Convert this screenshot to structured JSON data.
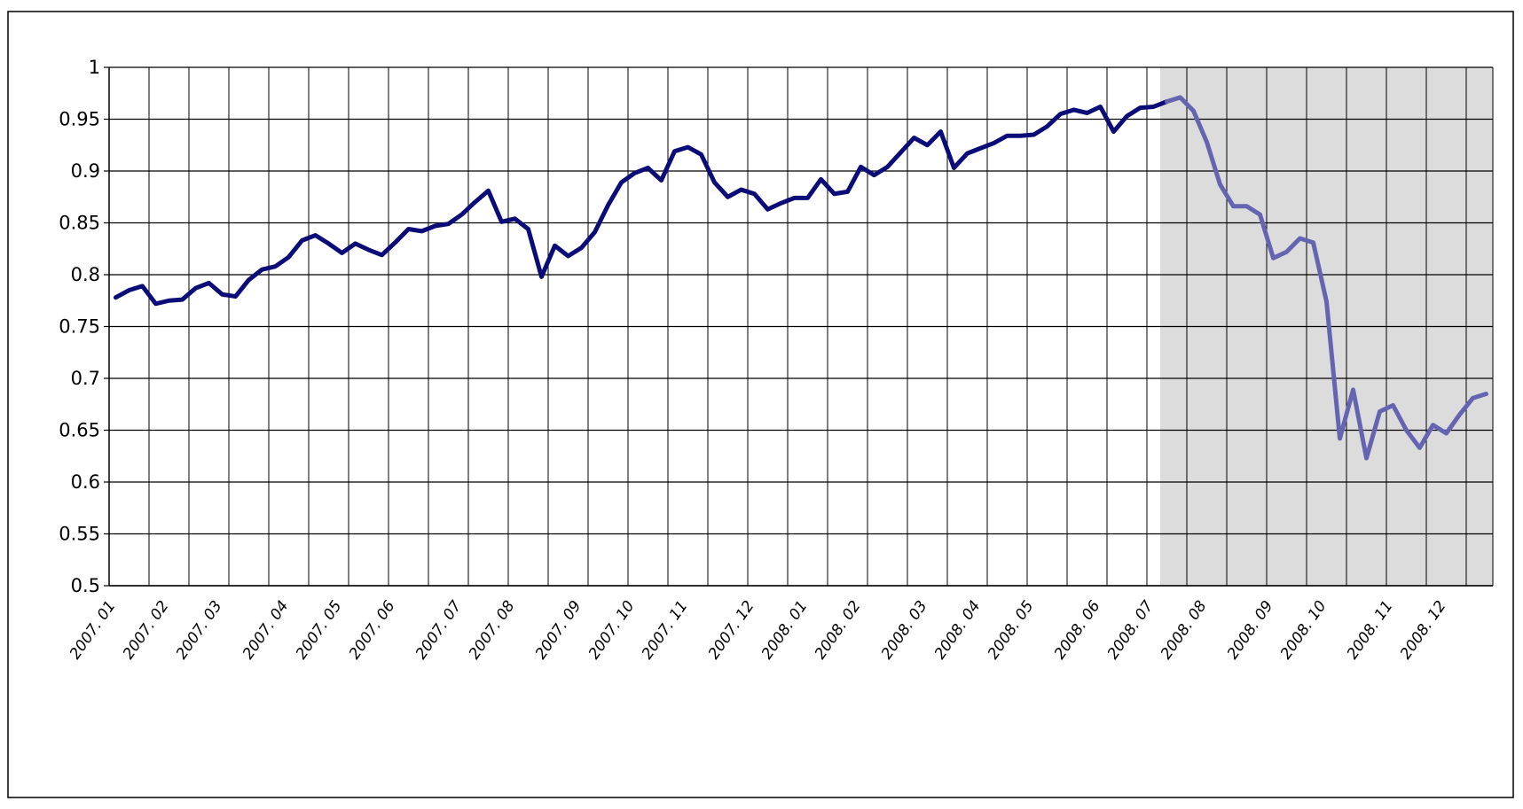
{
  "chart_data": {
    "type": "line",
    "categories": [
      "2007. 01",
      null,
      null,
      null,
      "2007. 02",
      null,
      null,
      null,
      "2007. 03",
      null,
      null,
      null,
      null,
      "2007. 04",
      null,
      null,
      null,
      "2007. 05",
      null,
      null,
      null,
      "2007. 06",
      null,
      null,
      null,
      null,
      "2007. 07",
      null,
      null,
      null,
      "2007. 08",
      null,
      null,
      null,
      null,
      "2007. 09",
      null,
      null,
      null,
      "2007. 10",
      null,
      null,
      null,
      "2007. 11",
      null,
      null,
      null,
      null,
      "2007. 12",
      null,
      null,
      null,
      "2008. 01",
      null,
      null,
      null,
      "2008. 02",
      null,
      null,
      null,
      null,
      "2008. 03",
      null,
      null,
      null,
      "2008. 04",
      null,
      null,
      null,
      "2008. 05",
      null,
      null,
      null,
      null,
      "2008. 06",
      null,
      null,
      null,
      "2008. 07",
      null,
      null,
      null,
      "2008. 08",
      null,
      null,
      null,
      null,
      "2008. 09",
      null,
      null,
      null,
      "2008. 10",
      null,
      null,
      null,
      null,
      "2008. 11",
      null,
      null,
      null,
      "2008. 12",
      null,
      null,
      null
    ],
    "series": [
      {
        "color": "#0c0c78",
        "values": [
          0.778,
          0.785,
          0.789,
          0.772,
          0.775,
          0.776,
          0.787,
          0.792,
          0.781,
          0.779,
          0.795,
          0.805,
          0.808,
          0.817,
          0.833,
          0.838,
          0.83,
          0.821,
          0.83,
          0.824,
          0.819,
          0.831,
          0.844,
          0.842,
          0.847,
          0.849,
          0.858,
          0.87,
          0.881,
          0.851,
          0.854,
          0.844,
          0.798,
          0.828,
          0.818,
          0.826,
          0.841,
          0.867,
          0.889,
          0.898,
          0.903,
          0.891,
          0.919,
          0.923,
          0.916,
          0.889,
          0.875,
          0.882,
          0.878,
          0.863,
          0.869,
          0.874,
          0.874,
          0.892,
          0.878,
          0.88,
          0.904,
          0.896,
          0.904,
          0.918,
          0.932,
          0.925,
          0.938,
          0.903,
          0.917,
          0.922,
          0.927,
          0.934,
          0.934,
          0.935,
          0.943,
          0.955,
          0.959,
          0.956,
          0.962,
          0.938,
          0.953,
          0.961,
          0.962,
          0.967,
          null,
          null,
          null,
          null,
          null,
          null,
          null,
          null,
          null,
          null,
          null,
          null,
          null,
          null,
          null,
          null,
          null,
          null,
          null,
          null,
          null,
          null,
          null,
          null
        ]
      },
      {
        "color": "#6464b0",
        "values": [
          null,
          null,
          null,
          null,
          null,
          null,
          null,
          null,
          null,
          null,
          null,
          null,
          null,
          null,
          null,
          null,
          null,
          null,
          null,
          null,
          null,
          null,
          null,
          null,
          null,
          null,
          null,
          null,
          null,
          null,
          null,
          null,
          null,
          null,
          null,
          null,
          null,
          null,
          null,
          null,
          null,
          null,
          null,
          null,
          null,
          null,
          null,
          null,
          null,
          null,
          null,
          null,
          null,
          null,
          null,
          null,
          null,
          null,
          null,
          null,
          null,
          null,
          null,
          null,
          null,
          null,
          null,
          null,
          null,
          null,
          null,
          null,
          null,
          null,
          null,
          null,
          null,
          null,
          null,
          0.967,
          0.971,
          0.958,
          0.928,
          0.887,
          0.866,
          0.866,
          0.858,
          0.816,
          0.822,
          0.835,
          0.831,
          0.774,
          0.642,
          0.689,
          0.623,
          0.668,
          0.674,
          0.65,
          0.633,
          0.655,
          0.647,
          0.665,
          0.681,
          0.685
        ]
      }
    ],
    "shade_color": "#dcdcdc",
    "ylim": [
      0.5,
      1
    ],
    "yticks": [
      0.5,
      0.55,
      0.6,
      0.65,
      0.7,
      0.75,
      0.8,
      0.85,
      0.9,
      0.95,
      1
    ],
    "grid": true
  }
}
